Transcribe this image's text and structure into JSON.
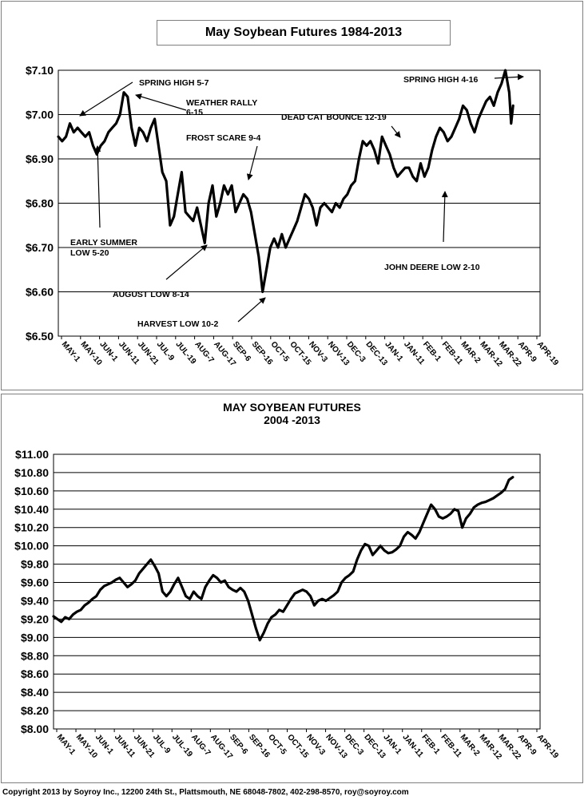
{
  "charts": {
    "top": {
      "title": "May Soybean Futures  1984-2013",
      "annotations": [
        {
          "name": "annotation-spring-high-5-7",
          "lines": [
            "SPRING HIGH 5-7"
          ]
        },
        {
          "name": "annotation-weather-rally",
          "lines": [
            "WEATHER RALLY",
            "6-15"
          ]
        },
        {
          "name": "annotation-dead-cat-bounce",
          "lines": [
            "DEAD CAT BOUNCE 12-19"
          ]
        },
        {
          "name": "annotation-spring-high-4-16",
          "lines": [
            "SPRING HIGH 4-16"
          ]
        },
        {
          "name": "annotation-frost-scare",
          "lines": [
            "FROST SCARE 9-4"
          ]
        },
        {
          "name": "annotation-early-summer-low",
          "lines": [
            "EARLY SUMMER",
            "LOW 5-20"
          ]
        },
        {
          "name": "annotation-august-low",
          "lines": [
            "AUGUST LOW 8-14"
          ]
        },
        {
          "name": "annotation-harvest-low",
          "lines": [
            "HARVEST LOW 10-2"
          ]
        },
        {
          "name": "annotation-john-deere-low",
          "lines": [
            "JOHN DEERE LOW 2-10"
          ]
        }
      ]
    },
    "bottom": {
      "title": "MAY SOYBEAN FUTURES",
      "subtitle": "2004 -2013"
    }
  },
  "footer": {
    "copyright": "Copyright 2013 by Soyroy Inc., 12200 24th St., Plattsmouth, NE 68048-7802, 402-298-8570, roy@soyroy.com"
  },
  "chart_data": [
    {
      "type": "line",
      "title": "May Soybean Futures  1984-2013",
      "ylim": [
        6.5,
        7.1
      ],
      "yticks": [
        6.5,
        6.6,
        6.7,
        6.8,
        6.9,
        7.0,
        7.1
      ],
      "ytick_labels": [
        "$6.50",
        "$6.60",
        "$6.70",
        "$6.80",
        "$6.90",
        "$7.00",
        "$7.10"
      ],
      "grid": true,
      "x_range": [
        0,
        250
      ],
      "xtick_labels": [
        "MAY-1",
        "MAY-10",
        "JUN-1",
        "JUN-11",
        "JUN-21",
        "JUL-9",
        "JUL-19",
        "AUG-7",
        "AUG-17",
        "SEP-6",
        "SEP-16",
        "OCT-5",
        "OCT-15",
        "NOV-3",
        "NOV-13",
        "DEC-3",
        "DEC-13",
        "JAN-1",
        "JAN-11",
        "FEB-1",
        "FEB-11",
        "MAR-2",
        "MAR-12",
        "MAR-22",
        "APR-9",
        "APR-19"
      ],
      "series": [
        {
          "color": "#000000",
          "points": [
            [
              0,
              6.95
            ],
            [
              2,
              6.94
            ],
            [
              4,
              6.95
            ],
            [
              6,
              6.98
            ],
            [
              8,
              6.96
            ],
            [
              10,
              6.97
            ],
            [
              12,
              6.96
            ],
            [
              14,
              6.95
            ],
            [
              16,
              6.96
            ],
            [
              18,
              6.93
            ],
            [
              20,
              6.91
            ],
            [
              22,
              6.93
            ],
            [
              24,
              6.94
            ],
            [
              26,
              6.96
            ],
            [
              28,
              6.97
            ],
            [
              30,
              6.98
            ],
            [
              32,
              7.0
            ],
            [
              34,
              7.05
            ],
            [
              36,
              7.04
            ],
            [
              38,
              6.97
            ],
            [
              40,
              6.93
            ],
            [
              42,
              6.97
            ],
            [
              44,
              6.96
            ],
            [
              46,
              6.94
            ],
            [
              48,
              6.97
            ],
            [
              50,
              6.99
            ],
            [
              52,
              6.93
            ],
            [
              54,
              6.87
            ],
            [
              56,
              6.85
            ],
            [
              58,
              6.75
            ],
            [
              60,
              6.77
            ],
            [
              62,
              6.82
            ],
            [
              64,
              6.87
            ],
            [
              66,
              6.78
            ],
            [
              68,
              6.77
            ],
            [
              70,
              6.76
            ],
            [
              72,
              6.79
            ],
            [
              74,
              6.75
            ],
            [
              76,
              6.71
            ],
            [
              78,
              6.8
            ],
            [
              80,
              6.84
            ],
            [
              82,
              6.77
            ],
            [
              84,
              6.8
            ],
            [
              86,
              6.84
            ],
            [
              88,
              6.82
            ],
            [
              90,
              6.84
            ],
            [
              92,
              6.78
            ],
            [
              94,
              6.8
            ],
            [
              96,
              6.82
            ],
            [
              98,
              6.81
            ],
            [
              100,
              6.78
            ],
            [
              102,
              6.73
            ],
            [
              104,
              6.68
            ],
            [
              106,
              6.6
            ],
            [
              108,
              6.65
            ],
            [
              110,
              6.7
            ],
            [
              112,
              6.72
            ],
            [
              114,
              6.7
            ],
            [
              116,
              6.73
            ],
            [
              118,
              6.7
            ],
            [
              120,
              6.72
            ],
            [
              122,
              6.74
            ],
            [
              124,
              6.76
            ],
            [
              126,
              6.79
            ],
            [
              128,
              6.82
            ],
            [
              130,
              6.81
            ],
            [
              132,
              6.79
            ],
            [
              134,
              6.75
            ],
            [
              136,
              6.79
            ],
            [
              138,
              6.8
            ],
            [
              140,
              6.79
            ],
            [
              142,
              6.78
            ],
            [
              144,
              6.8
            ],
            [
              146,
              6.79
            ],
            [
              148,
              6.81
            ],
            [
              150,
              6.82
            ],
            [
              152,
              6.84
            ],
            [
              154,
              6.85
            ],
            [
              156,
              6.9
            ],
            [
              158,
              6.94
            ],
            [
              160,
              6.93
            ],
            [
              162,
              6.94
            ],
            [
              164,
              6.92
            ],
            [
              166,
              6.89
            ],
            [
              168,
              6.95
            ],
            [
              170,
              6.93
            ],
            [
              172,
              6.91
            ],
            [
              174,
              6.88
            ],
            [
              176,
              6.86
            ],
            [
              178,
              6.87
            ],
            [
              180,
              6.88
            ],
            [
              182,
              6.88
            ],
            [
              184,
              6.86
            ],
            [
              186,
              6.85
            ],
            [
              188,
              6.89
            ],
            [
              190,
              6.86
            ],
            [
              192,
              6.88
            ],
            [
              194,
              6.92
            ],
            [
              196,
              6.95
            ],
            [
              198,
              6.97
            ],
            [
              200,
              6.96
            ],
            [
              202,
              6.94
            ],
            [
              204,
              6.95
            ],
            [
              206,
              6.97
            ],
            [
              208,
              6.99
            ],
            [
              210,
              7.02
            ],
            [
              212,
              7.01
            ],
            [
              214,
              6.98
            ],
            [
              216,
              6.96
            ],
            [
              218,
              6.99
            ],
            [
              220,
              7.01
            ],
            [
              222,
              7.03
            ],
            [
              224,
              7.04
            ],
            [
              226,
              7.02
            ],
            [
              228,
              7.05
            ],
            [
              230,
              7.07
            ],
            [
              232,
              7.1
            ],
            [
              234,
              7.05
            ],
            [
              235,
              6.98
            ],
            [
              236,
              7.02
            ]
          ]
        }
      ]
    },
    {
      "type": "line",
      "title": "MAY SOYBEAN FUTURES",
      "subtitle": "2004 -2013",
      "ylim": [
        8.0,
        11.0
      ],
      "yticks": [
        8.0,
        8.2,
        8.4,
        8.6,
        8.8,
        9.0,
        9.2,
        9.4,
        9.6,
        9.8,
        10.0,
        10.2,
        10.4,
        10.6,
        10.8,
        11.0
      ],
      "ytick_labels": [
        "$8.00",
        "$8.20",
        "$8.40",
        "$8.60",
        "$8.80",
        "$9.00",
        "$9.20",
        "$9.40",
        "$9.60",
        "$9.80",
        "$10.00",
        "$10.20",
        "$10.40",
        "$10.60",
        "$10.80",
        "$11.00"
      ],
      "grid": true,
      "x_range": [
        0,
        250
      ],
      "xtick_labels": [
        "MAY-1",
        "MAY-10",
        "JUN-1",
        "JUN-11",
        "JUN-21",
        "JUL-9",
        "JUL-19",
        "AUG-7",
        "AUG-17",
        "SEP-6",
        "SEP-16",
        "OCT-5",
        "OCT-15",
        "NOV-3",
        "NOV-13",
        "DEC-3",
        "DEC-13",
        "JAN-1",
        "JAN-11",
        "FEB-1",
        "FEB-11",
        "MAR-2",
        "MAR-12",
        "MAR-22",
        "APR-9",
        "APR-19"
      ],
      "series": [
        {
          "color": "#000000",
          "points": [
            [
              0,
              9.23
            ],
            [
              2,
              9.2
            ],
            [
              4,
              9.17
            ],
            [
              6,
              9.22
            ],
            [
              8,
              9.2
            ],
            [
              10,
              9.25
            ],
            [
              12,
              9.28
            ],
            [
              14,
              9.3
            ],
            [
              16,
              9.35
            ],
            [
              18,
              9.38
            ],
            [
              20,
              9.42
            ],
            [
              22,
              9.45
            ],
            [
              24,
              9.52
            ],
            [
              26,
              9.56
            ],
            [
              28,
              9.58
            ],
            [
              30,
              9.6
            ],
            [
              32,
              9.63
            ],
            [
              34,
              9.65
            ],
            [
              36,
              9.6
            ],
            [
              38,
              9.55
            ],
            [
              40,
              9.58
            ],
            [
              42,
              9.62
            ],
            [
              44,
              9.7
            ],
            [
              46,
              9.75
            ],
            [
              48,
              9.8
            ],
            [
              50,
              9.85
            ],
            [
              52,
              9.78
            ],
            [
              54,
              9.7
            ],
            [
              56,
              9.5
            ],
            [
              58,
              9.45
            ],
            [
              60,
              9.5
            ],
            [
              62,
              9.58
            ],
            [
              64,
              9.65
            ],
            [
              66,
              9.55
            ],
            [
              68,
              9.45
            ],
            [
              70,
              9.42
            ],
            [
              72,
              9.5
            ],
            [
              74,
              9.45
            ],
            [
              76,
              9.42
            ],
            [
              78,
              9.55
            ],
            [
              80,
              9.62
            ],
            [
              82,
              9.68
            ],
            [
              84,
              9.65
            ],
            [
              86,
              9.6
            ],
            [
              88,
              9.62
            ],
            [
              90,
              9.55
            ],
            [
              92,
              9.52
            ],
            [
              94,
              9.5
            ],
            [
              96,
              9.54
            ],
            [
              98,
              9.5
            ],
            [
              100,
              9.4
            ],
            [
              102,
              9.25
            ],
            [
              104,
              9.1
            ],
            [
              106,
              8.97
            ],
            [
              108,
              9.05
            ],
            [
              110,
              9.15
            ],
            [
              112,
              9.22
            ],
            [
              114,
              9.25
            ],
            [
              116,
              9.3
            ],
            [
              118,
              9.28
            ],
            [
              120,
              9.35
            ],
            [
              122,
              9.42
            ],
            [
              124,
              9.48
            ],
            [
              126,
              9.5
            ],
            [
              128,
              9.52
            ],
            [
              130,
              9.5
            ],
            [
              132,
              9.45
            ],
            [
              134,
              9.35
            ],
            [
              136,
              9.4
            ],
            [
              138,
              9.42
            ],
            [
              140,
              9.4
            ],
            [
              142,
              9.43
            ],
            [
              144,
              9.46
            ],
            [
              146,
              9.5
            ],
            [
              148,
              9.6
            ],
            [
              150,
              9.65
            ],
            [
              152,
              9.68
            ],
            [
              154,
              9.72
            ],
            [
              156,
              9.85
            ],
            [
              158,
              9.95
            ],
            [
              160,
              10.02
            ],
            [
              162,
              10.0
            ],
            [
              164,
              9.9
            ],
            [
              166,
              9.95
            ],
            [
              168,
              10.0
            ],
            [
              170,
              9.95
            ],
            [
              172,
              9.92
            ],
            [
              174,
              9.93
            ],
            [
              176,
              9.96
            ],
            [
              178,
              10.0
            ],
            [
              180,
              10.1
            ],
            [
              182,
              10.15
            ],
            [
              184,
              10.12
            ],
            [
              186,
              10.08
            ],
            [
              188,
              10.15
            ],
            [
              190,
              10.25
            ],
            [
              192,
              10.35
            ],
            [
              194,
              10.45
            ],
            [
              196,
              10.4
            ],
            [
              198,
              10.32
            ],
            [
              200,
              10.3
            ],
            [
              202,
              10.32
            ],
            [
              204,
              10.35
            ],
            [
              206,
              10.4
            ],
            [
              208,
              10.38
            ],
            [
              210,
              10.2
            ],
            [
              212,
              10.3
            ],
            [
              214,
              10.35
            ],
            [
              216,
              10.42
            ],
            [
              218,
              10.45
            ],
            [
              220,
              10.47
            ],
            [
              222,
              10.48
            ],
            [
              224,
              10.5
            ],
            [
              226,
              10.52
            ],
            [
              228,
              10.55
            ],
            [
              230,
              10.58
            ],
            [
              232,
              10.62
            ],
            [
              234,
              10.72
            ],
            [
              236,
              10.75
            ]
          ]
        }
      ]
    }
  ]
}
